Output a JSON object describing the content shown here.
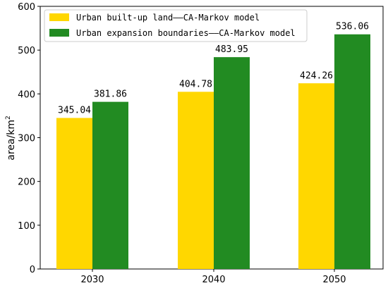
{
  "chart_data": {
    "type": "bar",
    "categories": [
      "2030",
      "2040",
      "2050"
    ],
    "series": [
      {
        "name": "Urban built-up land——CA-Markov model",
        "values": [
          345.04,
          404.78,
          424.26
        ],
        "color": "#FFD700"
      },
      {
        "name": "Urban expansion boundaries——CA-Markov model",
        "values": [
          381.86,
          483.95,
          536.06
        ],
        "color": "#228B22"
      }
    ],
    "data_labels": [
      [
        "345.04",
        "404.78",
        "424.26"
      ],
      [
        "381.86",
        "483.95",
        "536.06"
      ]
    ],
    "ylabel_main": "area/km",
    "ylabel_sup": "2",
    "xlabel": "",
    "ylim": [
      0,
      600
    ],
    "yticks": [
      "0",
      "100",
      "200",
      "300",
      "400",
      "500",
      "600"
    ],
    "legend_position": "top-left",
    "grid": false
  }
}
